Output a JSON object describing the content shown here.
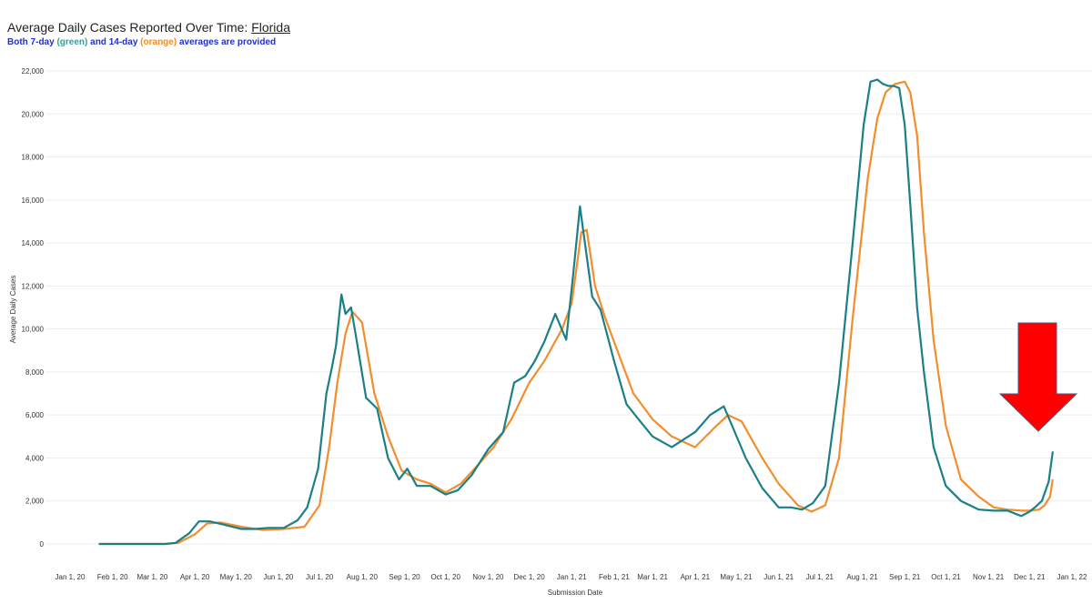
{
  "header": {
    "title_prefix": "Average Daily Cases Reported Over Time: ",
    "title_state": "Florida",
    "subtitle_a": "Both 7-day ",
    "subtitle_green": "(green)",
    "subtitle_b": " and 14-day ",
    "subtitle_orange": "(orange)",
    "subtitle_c": " averages are provided"
  },
  "colors": {
    "seven_day": "#1b7f86",
    "fourteen_day": "#f28e2b",
    "arrow": "#ff0000",
    "gridline": "#ededed"
  },
  "chart_data": {
    "type": "line",
    "title": "Average Daily Cases Reported Over Time: Florida",
    "xlabel": "Submission Date",
    "ylabel": "Average Daily Cases",
    "ylim": [
      0,
      22000
    ],
    "xlim": [
      "2020-01-01",
      "2022-01-01"
    ],
    "yticks": [
      0,
      2000,
      4000,
      6000,
      8000,
      10000,
      12000,
      14000,
      16000,
      18000,
      20000,
      22000
    ],
    "ytick_labels": [
      "0",
      "2,000",
      "4,000",
      "6,000",
      "8,000",
      "10,000",
      "12,000",
      "14,000",
      "16,000",
      "18,000",
      "20,000",
      "22,000"
    ],
    "xticks": [
      "2020-01-01",
      "2020-02-01",
      "2020-03-01",
      "2020-04-01",
      "2020-05-01",
      "2020-06-01",
      "2020-07-01",
      "2020-08-01",
      "2020-09-01",
      "2020-10-01",
      "2020-11-01",
      "2020-12-01",
      "2021-01-01",
      "2021-02-01",
      "2021-03-01",
      "2021-04-01",
      "2021-05-01",
      "2021-06-01",
      "2021-07-01",
      "2021-08-01",
      "2021-09-01",
      "2021-10-01",
      "2021-11-01",
      "2021-12-01",
      "2022-01-01"
    ],
    "xtick_labels": [
      "Jan 1, 20",
      "Feb 1, 20",
      "Mar 1, 20",
      "Apr 1, 20",
      "May 1, 20",
      "Jun 1, 20",
      "Jul 1, 20",
      "Aug 1, 20",
      "Sep 1, 20",
      "Oct 1, 20",
      "Nov 1, 20",
      "Dec 1, 20",
      "Jan 1, 21",
      "Feb 1, 21",
      "Mar 1, 21",
      "Apr 1, 21",
      "May 1, 21",
      "Jun 1, 21",
      "Jul 1, 21",
      "Aug 1, 21",
      "Sep 1, 21",
      "Oct 1, 21",
      "Nov 1, 21",
      "Dec 1, 21",
      "Jan 1, 22"
    ],
    "grid": true,
    "annotation": "red arrow pointing down at the latest uptick",
    "series": [
      {
        "color": "#1b7f86",
        "x": [
          "2020-01-22",
          "2020-02-15",
          "2020-03-10",
          "2020-03-18",
          "2020-03-28",
          "2020-04-04",
          "2020-04-12",
          "2020-04-22",
          "2020-05-05",
          "2020-05-15",
          "2020-05-25",
          "2020-06-05",
          "2020-06-15",
          "2020-06-22",
          "2020-06-30",
          "2020-07-06",
          "2020-07-10",
          "2020-07-13",
          "2020-07-17",
          "2020-07-20",
          "2020-07-24",
          "2020-07-28",
          "2020-08-04",
          "2020-08-12",
          "2020-08-20",
          "2020-08-28",
          "2020-09-03",
          "2020-09-10",
          "2020-09-20",
          "2020-10-01",
          "2020-10-10",
          "2020-10-20",
          "2020-11-01",
          "2020-11-12",
          "2020-11-20",
          "2020-11-28",
          "2020-12-05",
          "2020-12-12",
          "2020-12-20",
          "2020-12-28",
          "2021-01-02",
          "2021-01-07",
          "2021-01-10",
          "2021-01-16",
          "2021-01-22",
          "2021-02-01",
          "2021-02-10",
          "2021-02-20",
          "2021-03-01",
          "2021-03-15",
          "2021-04-01",
          "2021-04-12",
          "2021-04-22",
          "2021-04-28",
          "2021-05-08",
          "2021-05-20",
          "2021-06-01",
          "2021-06-10",
          "2021-06-18",
          "2021-06-26",
          "2021-07-05",
          "2021-07-15",
          "2021-07-25",
          "2021-08-02",
          "2021-08-07",
          "2021-08-12",
          "2021-08-16",
          "2021-08-20",
          "2021-08-24",
          "2021-08-28",
          "2021-09-01",
          "2021-09-05",
          "2021-09-10",
          "2021-09-15",
          "2021-09-22",
          "2021-10-01",
          "2021-10-12",
          "2021-10-25",
          "2021-11-05",
          "2021-11-15",
          "2021-11-25",
          "2021-12-01",
          "2021-12-05",
          "2021-12-10",
          "2021-12-15",
          "2021-12-18"
        ],
        "y": [
          0,
          0,
          0,
          50,
          500,
          1050,
          1050,
          900,
          700,
          700,
          750,
          750,
          1100,
          1700,
          3500,
          7000,
          8200,
          9200,
          11600,
          10700,
          11000,
          9500,
          6800,
          6300,
          4000,
          3000,
          3500,
          2700,
          2700,
          2300,
          2500,
          3200,
          4400,
          5200,
          7500,
          7800,
          8500,
          9400,
          10700,
          9500,
          12500,
          15700,
          14300,
          11500,
          10900,
          8500,
          6500,
          5700,
          5000,
          4500,
          5200,
          6000,
          6400,
          5500,
          4000,
          2600,
          1700,
          1700,
          1600,
          1900,
          2700,
          7500,
          14000,
          19500,
          21500,
          21600,
          21400,
          21300,
          21300,
          21200,
          19500,
          15800,
          11000,
          8000,
          4500,
          2700,
          2000,
          1600,
          1550,
          1550,
          1300,
          1500,
          1700,
          2000,
          2900,
          4300
        ]
      },
      {
        "color": "#f28e2b",
        "x": [
          "2020-01-22",
          "2020-02-15",
          "2020-03-10",
          "2020-03-20",
          "2020-04-01",
          "2020-04-10",
          "2020-04-20",
          "2020-05-05",
          "2020-05-20",
          "2020-06-05",
          "2020-06-20",
          "2020-07-01",
          "2020-07-08",
          "2020-07-14",
          "2020-07-20",
          "2020-07-25",
          "2020-08-01",
          "2020-08-10",
          "2020-08-20",
          "2020-08-30",
          "2020-09-10",
          "2020-09-20",
          "2020-10-01",
          "2020-10-12",
          "2020-10-25",
          "2020-11-05",
          "2020-11-18",
          "2020-12-01",
          "2020-12-12",
          "2020-12-25",
          "2021-01-01",
          "2021-01-08",
          "2021-01-12",
          "2021-01-18",
          "2021-01-25",
          "2021-02-05",
          "2021-02-15",
          "2021-03-01",
          "2021-03-15",
          "2021-04-01",
          "2021-04-15",
          "2021-04-25",
          "2021-05-05",
          "2021-05-20",
          "2021-06-01",
          "2021-06-15",
          "2021-06-25",
          "2021-07-05",
          "2021-07-15",
          "2021-07-25",
          "2021-08-05",
          "2021-08-12",
          "2021-08-18",
          "2021-08-25",
          "2021-09-01",
          "2021-09-05",
          "2021-09-10",
          "2021-09-15",
          "2021-09-22",
          "2021-10-01",
          "2021-10-12",
          "2021-10-25",
          "2021-11-05",
          "2021-11-15",
          "2021-11-25",
          "2021-12-02",
          "2021-12-08",
          "2021-12-12",
          "2021-12-16",
          "2021-12-18"
        ],
        "y": [
          0,
          0,
          0,
          50,
          450,
          950,
          1000,
          800,
          650,
          700,
          800,
          1800,
          4500,
          7500,
          9800,
          10800,
          10300,
          7000,
          5000,
          3400,
          3000,
          2800,
          2400,
          2800,
          3700,
          4500,
          5800,
          7500,
          8500,
          10000,
          11200,
          14500,
          14600,
          12000,
          10600,
          8700,
          7000,
          5800,
          5000,
          4500,
          5400,
          6000,
          5700,
          4000,
          2800,
          1800,
          1500,
          1800,
          4000,
          10500,
          17000,
          19800,
          21000,
          21400,
          21500,
          21000,
          19000,
          14500,
          9500,
          5500,
          3000,
          2200,
          1700,
          1600,
          1550,
          1550,
          1600,
          1800,
          2200,
          3000
        ]
      }
    ]
  }
}
